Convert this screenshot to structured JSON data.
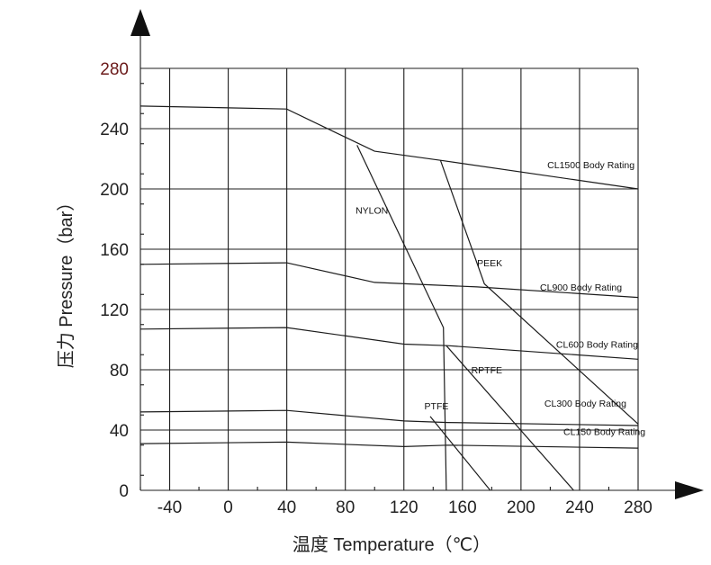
{
  "chart_data": {
    "type": "line",
    "xlabel": "温度 Temperature（℃）",
    "ylabel": "压力 Pressure（bar）",
    "xlim": [
      -60,
      280
    ],
    "ylim": [
      0,
      280
    ],
    "x_ticks": [
      "-40",
      "0",
      "40",
      "80",
      "120",
      "160",
      "200",
      "240",
      "280"
    ],
    "y_ticks": [
      "0",
      "40",
      "80",
      "120",
      "160",
      "200",
      "240",
      "280"
    ],
    "grid": true,
    "series": [
      {
        "name": "CL1500 Body Rating",
        "points": [
          [
            -60,
            255
          ],
          [
            40,
            253
          ],
          [
            100,
            225
          ],
          [
            145,
            219
          ],
          [
            280,
            200
          ]
        ]
      },
      {
        "name": "CL900 Body Rating",
        "points": [
          [
            -60,
            150
          ],
          [
            40,
            151
          ],
          [
            100,
            138
          ],
          [
            170,
            135
          ],
          [
            280,
            128
          ]
        ]
      },
      {
        "name": "CL600 Body Rating",
        "points": [
          [
            -60,
            107
          ],
          [
            40,
            108
          ],
          [
            120,
            97
          ],
          [
            150,
            96
          ],
          [
            280,
            87
          ]
        ]
      },
      {
        "name": "CL300 Body Rating",
        "points": [
          [
            -60,
            52
          ],
          [
            40,
            53
          ],
          [
            120,
            46
          ],
          [
            150,
            45
          ],
          [
            280,
            43
          ]
        ]
      },
      {
        "name": "CL150 Body Rating",
        "points": [
          [
            -60,
            31
          ],
          [
            40,
            32
          ],
          [
            120,
            29
          ],
          [
            150,
            30
          ],
          [
            280,
            28
          ]
        ]
      },
      {
        "name": "NYLON",
        "points": [
          [
            88,
            229
          ],
          [
            147,
            108
          ],
          [
            149,
            0
          ]
        ]
      },
      {
        "name": "PEEK",
        "points": [
          [
            145,
            219
          ],
          [
            175,
            137
          ],
          [
            280,
            44
          ]
        ]
      },
      {
        "name": "RPTFE",
        "points": [
          [
            149,
            96
          ],
          [
            236,
            0
          ]
        ]
      },
      {
        "name": "PTFE",
        "points": [
          [
            138,
            49
          ],
          [
            179,
            0
          ]
        ]
      }
    ],
    "annotations": [
      {
        "text": "CL1500 Body Rating",
        "x": 218,
        "y": 216
      },
      {
        "text": "CL900 Body Rating",
        "x": 213,
        "y": 135
      },
      {
        "text": "CL600 Body Rating",
        "x": 224,
        "y": 97
      },
      {
        "text": "CL300 Body Rating",
        "x": 216,
        "y": 58
      },
      {
        "text": "CL150 Body Rating",
        "x": 229,
        "y": 39
      },
      {
        "text": "NYLON",
        "x": 87,
        "y": 186
      },
      {
        "text": "PEEK",
        "x": 170,
        "y": 151
      },
      {
        "text": "RPTFE",
        "x": 166,
        "y": 80
      },
      {
        "text": "PTFE",
        "x": 134,
        "y": 56
      }
    ]
  }
}
